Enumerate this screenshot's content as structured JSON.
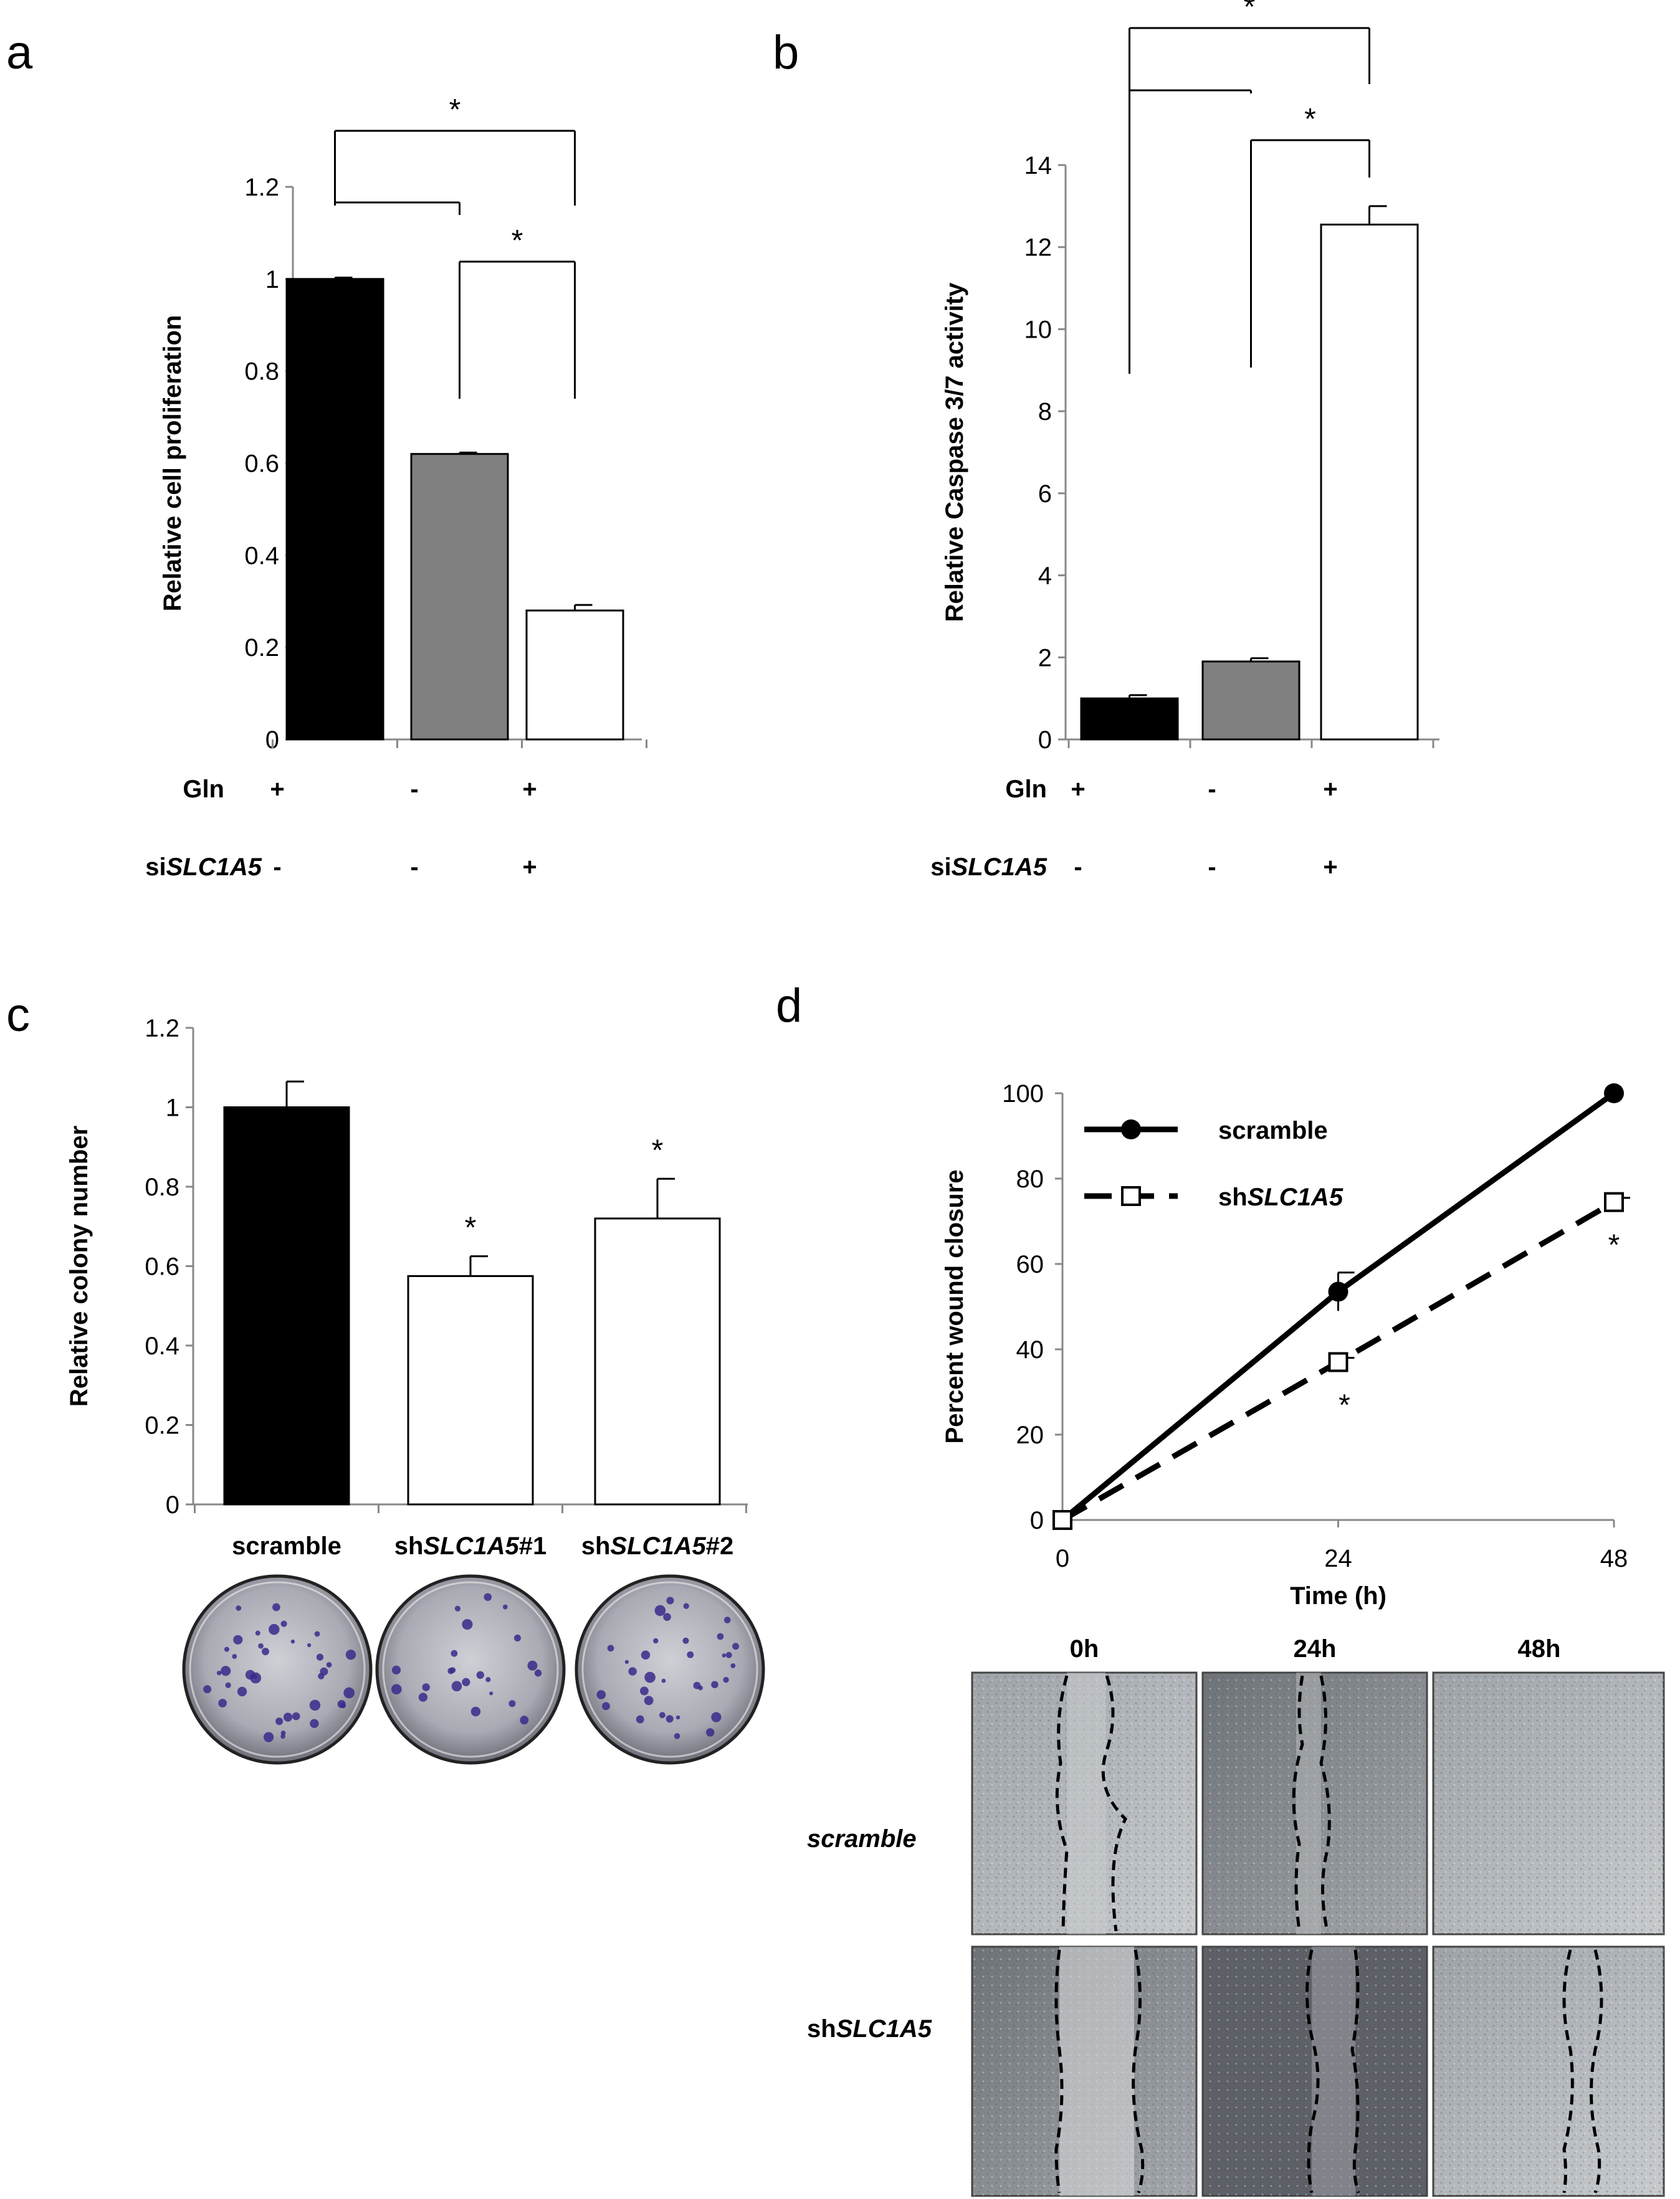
{
  "panels": {
    "a": "a",
    "b": "b",
    "c": "c",
    "d": "d"
  },
  "chart_data": [
    {
      "id": "a",
      "type": "bar",
      "ylabel": "Relative cell proliferation",
      "ylim": [
        0,
        1.2
      ],
      "yticks": [
        "0",
        "0.2",
        "0.4",
        "0.6",
        "0.8",
        "1",
        "1.2"
      ],
      "values": [
        1.0,
        0.62,
        0.28
      ],
      "errors": [
        0.003,
        0.003,
        0.012
      ],
      "bar_colors": [
        "#000000",
        "#808080",
        "#ffffff"
      ],
      "condition_labels": {
        "gln": "Gln",
        "si_prefix": "si",
        "si_gene": "SLC1A5"
      },
      "conditions": {
        "gln": [
          "+",
          "-",
          "+"
        ],
        "si": [
          "-",
          "-",
          "+"
        ]
      },
      "significance": [
        {
          "from": 0,
          "to": 2,
          "label": "*"
        },
        {
          "from": 0,
          "to": 1,
          "label": ""
        },
        {
          "from": 1,
          "to": 2,
          "label": "*"
        }
      ]
    },
    {
      "id": "b",
      "type": "bar",
      "ylabel": "Relative Caspase 3/7 activity",
      "ylim": [
        0,
        14
      ],
      "yticks": [
        "0",
        "2",
        "4",
        "6",
        "8",
        "10",
        "12",
        "14"
      ],
      "values": [
        1.0,
        1.9,
        12.55
      ],
      "errors": [
        0.08,
        0.08,
        0.45
      ],
      "bar_colors": [
        "#000000",
        "#808080",
        "#ffffff"
      ],
      "condition_labels": {
        "gln": "Gln",
        "si_prefix": "si",
        "si_gene": "SLC1A5"
      },
      "conditions": {
        "gln": [
          "+",
          "-",
          "+"
        ],
        "si": [
          "-",
          "-",
          "+"
        ]
      },
      "significance": [
        {
          "from": 0,
          "to": 2,
          "label": "*"
        },
        {
          "from": 0,
          "to": 1,
          "label": ""
        },
        {
          "from": 1,
          "to": 2,
          "label": "*"
        }
      ]
    },
    {
      "id": "c",
      "type": "bar",
      "ylabel": "Relative colony number",
      "ylim": [
        0,
        1.2
      ],
      "yticks": [
        "0",
        "0.2",
        "0.4",
        "0.6",
        "0.8",
        "1",
        "1.2"
      ],
      "categories": [
        {
          "prefix": "",
          "gene": "scramble",
          "suffix": ""
        },
        {
          "prefix": "sh",
          "gene": "SLC1A5",
          "suffix": "#1"
        },
        {
          "prefix": "sh",
          "gene": "SLC1A5",
          "suffix": "#2"
        }
      ],
      "values": [
        1.0,
        0.575,
        0.72
      ],
      "errors": [
        0.065,
        0.05,
        0.1
      ],
      "bar_colors": [
        "#000000",
        "#ffffff",
        "#ffffff"
      ],
      "stars": [
        "",
        "*",
        "*"
      ]
    },
    {
      "id": "d",
      "type": "line",
      "ylabel": "Percent wound closure",
      "xlabel": "Time (h)",
      "ylim": [
        0,
        100
      ],
      "yticks": [
        "0",
        "20",
        "40",
        "60",
        "80",
        "100"
      ],
      "x": [
        0,
        24,
        48
      ],
      "xticks": [
        "0",
        "24",
        "48"
      ],
      "series": [
        {
          "name": "scramble",
          "values": [
            0,
            53.5,
            100
          ],
          "errors": [
            0.5,
            4.5,
            0.5
          ],
          "style": "solid",
          "marker": "filled-circle"
        },
        {
          "name_prefix": "sh",
          "name_gene": "SLC1A5",
          "values": [
            0,
            37,
            74.5
          ],
          "errors": [
            0.5,
            1.0,
            1.0
          ],
          "style": "dashed",
          "marker": "open-square",
          "stars": [
            "",
            "*",
            "*"
          ]
        }
      ],
      "legend_position": "top-left"
    }
  ],
  "colony_images": {
    "alt": [
      "scramble colonies",
      "shSLC1A5#1 colonies",
      "shSLC1A5#2 colonies"
    ]
  },
  "wound_images": {
    "columns": [
      "0h",
      "24h",
      "48h"
    ],
    "rows": [
      {
        "prefix": "",
        "gene": "scramble"
      },
      {
        "prefix": "sh",
        "gene": "SLC1A5"
      }
    ]
  }
}
